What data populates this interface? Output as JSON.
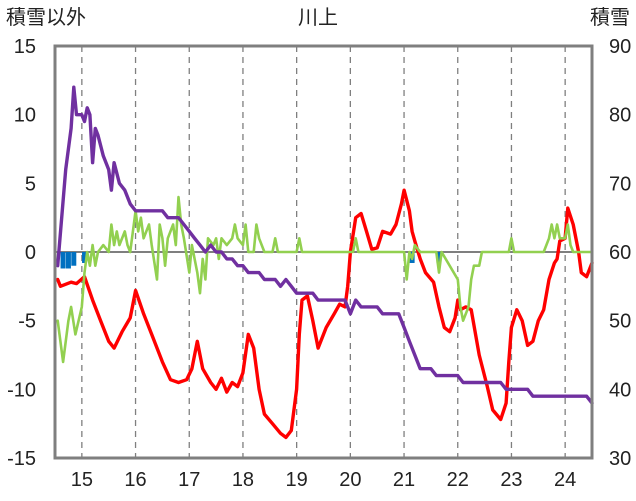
{
  "chart_data": {
    "type": "line",
    "title": "川上",
    "left_axis_title": "積雪以外",
    "right_axis_title": "積雪",
    "x_ticks": [
      "15",
      "16",
      "17",
      "18",
      "19",
      "20",
      "21",
      "22",
      "23",
      "24"
    ],
    "x_range": [
      14.5,
      24.5
    ],
    "ylim_left": [
      -15,
      15
    ],
    "yticks_left": [
      "15",
      "10",
      "5",
      "0",
      "-5",
      "-10",
      "-15"
    ],
    "ylim_right": [
      30,
      90
    ],
    "yticks_right": [
      "90",
      "80",
      "70",
      "60",
      "50",
      "40",
      "30"
    ],
    "grid": "dashed vertical at each day",
    "zero_line": 0,
    "series": [
      {
        "key": "red",
        "axis": "left",
        "color": "#ff0000",
        "points": [
          [
            14.55,
            -2.0
          ],
          [
            14.6,
            -2.5
          ],
          [
            14.8,
            -2.2
          ],
          [
            14.9,
            -2.3
          ],
          [
            15.05,
            -1.8
          ],
          [
            15.2,
            -3.5
          ],
          [
            15.35,
            -5.0
          ],
          [
            15.5,
            -6.5
          ],
          [
            15.6,
            -7.0
          ],
          [
            15.75,
            -5.8
          ],
          [
            15.9,
            -4.8
          ],
          [
            16.0,
            -2.8
          ],
          [
            16.15,
            -4.5
          ],
          [
            16.3,
            -6.0
          ],
          [
            16.5,
            -8.0
          ],
          [
            16.65,
            -9.3
          ],
          [
            16.8,
            -9.5
          ],
          [
            16.95,
            -9.3
          ],
          [
            17.05,
            -8.5
          ],
          [
            17.15,
            -6.5
          ],
          [
            17.25,
            -8.5
          ],
          [
            17.4,
            -9.5
          ],
          [
            17.5,
            -10.0
          ],
          [
            17.6,
            -9.2
          ],
          [
            17.7,
            -10.2
          ],
          [
            17.8,
            -9.5
          ],
          [
            17.9,
            -9.8
          ],
          [
            18.0,
            -8.8
          ],
          [
            18.1,
            -6.0
          ],
          [
            18.2,
            -7.0
          ],
          [
            18.3,
            -10.0
          ],
          [
            18.4,
            -11.8
          ],
          [
            18.55,
            -12.5
          ],
          [
            18.7,
            -13.2
          ],
          [
            18.8,
            -13.5
          ],
          [
            18.9,
            -13.0
          ],
          [
            19.0,
            -10.0
          ],
          [
            19.05,
            -6.0
          ],
          [
            19.1,
            -3.5
          ],
          [
            19.2,
            -3.2
          ],
          [
            19.3,
            -5.0
          ],
          [
            19.4,
            -7.0
          ],
          [
            19.55,
            -5.5
          ],
          [
            19.7,
            -4.5
          ],
          [
            19.8,
            -3.8
          ],
          [
            19.9,
            -4.0
          ],
          [
            19.95,
            -2.5
          ],
          [
            20.0,
            0.0
          ],
          [
            20.1,
            2.5
          ],
          [
            20.2,
            2.8
          ],
          [
            20.3,
            1.5
          ],
          [
            20.4,
            0.2
          ],
          [
            20.5,
            0.3
          ],
          [
            20.6,
            1.5
          ],
          [
            20.75,
            1.3
          ],
          [
            20.85,
            2.0
          ],
          [
            20.95,
            3.5
          ],
          [
            21.0,
            4.5
          ],
          [
            21.1,
            3.0
          ],
          [
            21.15,
            1.5
          ],
          [
            21.2,
            0.8
          ],
          [
            21.3,
            -0.5
          ],
          [
            21.4,
            -1.5
          ],
          [
            21.55,
            -2.2
          ],
          [
            21.65,
            -4.0
          ],
          [
            21.75,
            -5.5
          ],
          [
            21.85,
            -5.8
          ],
          [
            21.95,
            -4.8
          ],
          [
            22.0,
            -3.5
          ],
          [
            22.05,
            -4.2
          ],
          [
            22.15,
            -4.0
          ],
          [
            22.25,
            -4.2
          ],
          [
            22.4,
            -7.5
          ],
          [
            22.55,
            -9.8
          ],
          [
            22.65,
            -11.5
          ],
          [
            22.8,
            -12.2
          ],
          [
            22.9,
            -11.0
          ],
          [
            22.95,
            -8.0
          ],
          [
            23.0,
            -5.5
          ],
          [
            23.1,
            -4.2
          ],
          [
            23.2,
            -5.0
          ],
          [
            23.3,
            -6.8
          ],
          [
            23.4,
            -6.5
          ],
          [
            23.5,
            -5.0
          ],
          [
            23.6,
            -4.2
          ],
          [
            23.7,
            -2.0
          ],
          [
            23.8,
            -0.8
          ],
          [
            23.85,
            -0.5
          ],
          [
            23.9,
            0.8
          ],
          [
            24.0,
            1.0
          ],
          [
            24.05,
            3.2
          ],
          [
            24.15,
            2.0
          ],
          [
            24.25,
            0.0
          ],
          [
            24.3,
            -1.5
          ],
          [
            24.4,
            -1.8
          ],
          [
            24.5,
            -0.8
          ]
        ]
      },
      {
        "key": "green",
        "axis": "left",
        "color": "#92d050",
        "points": [
          [
            14.55,
            -5.0
          ],
          [
            14.65,
            -8.0
          ],
          [
            14.75,
            -5.0
          ],
          [
            14.8,
            -4.0
          ],
          [
            14.88,
            -6.0
          ],
          [
            15.0,
            -4.0
          ],
          [
            15.05,
            -1.5
          ],
          [
            15.1,
            0.0
          ],
          [
            15.15,
            -1.0
          ],
          [
            15.2,
            0.5
          ],
          [
            15.25,
            -1.0
          ],
          [
            15.3,
            0.0
          ],
          [
            15.4,
            0.5
          ],
          [
            15.5,
            0.0
          ],
          [
            15.55,
            2.0
          ],
          [
            15.6,
            0.5
          ],
          [
            15.65,
            1.5
          ],
          [
            15.7,
            0.5
          ],
          [
            15.8,
            1.5
          ],
          [
            15.85,
            0.5
          ],
          [
            15.9,
            0.0
          ],
          [
            16.0,
            3.0
          ],
          [
            16.05,
            1.5
          ],
          [
            16.1,
            2.5
          ],
          [
            16.15,
            1.0
          ],
          [
            16.25,
            2.0
          ],
          [
            16.3,
            0.5
          ],
          [
            16.4,
            -2.0
          ],
          [
            16.45,
            2.0
          ],
          [
            16.5,
            1.0
          ],
          [
            16.55,
            -1.0
          ],
          [
            16.6,
            1.0
          ],
          [
            16.7,
            2.0
          ],
          [
            16.75,
            0.5
          ],
          [
            16.8,
            4.0
          ],
          [
            16.85,
            2.0
          ],
          [
            16.9,
            1.0
          ],
          [
            17.0,
            -1.5
          ],
          [
            17.05,
            0.5
          ],
          [
            17.1,
            -0.5
          ],
          [
            17.15,
            -1.5
          ],
          [
            17.2,
            -3.0
          ],
          [
            17.25,
            -0.5
          ],
          [
            17.3,
            -2.0
          ],
          [
            17.35,
            1.0
          ],
          [
            17.45,
            0.5
          ],
          [
            17.5,
            1.0
          ],
          [
            17.55,
            -0.5
          ],
          [
            17.6,
            1.0
          ],
          [
            17.7,
            0.5
          ],
          [
            17.8,
            1.0
          ],
          [
            17.85,
            2.0
          ],
          [
            17.9,
            1.0
          ],
          [
            18.0,
            0.5
          ],
          [
            18.05,
            2.0
          ],
          [
            18.1,
            0.0
          ],
          [
            18.2,
            0.0
          ],
          [
            18.25,
            2.0
          ],
          [
            18.3,
            1.0
          ],
          [
            18.4,
            0.0
          ],
          [
            18.55,
            0.0
          ],
          [
            18.6,
            1.0
          ],
          [
            18.65,
            0.0
          ],
          [
            19.0,
            0.0
          ],
          [
            19.05,
            1.0
          ],
          [
            19.1,
            0.0
          ],
          [
            20.05,
            0.0
          ],
          [
            20.1,
            1.0
          ],
          [
            20.15,
            0.0
          ],
          [
            21.0,
            0.0
          ],
          [
            21.05,
            -2.0
          ],
          [
            21.1,
            0.0
          ],
          [
            21.15,
            -0.5
          ],
          [
            21.2,
            0.5
          ],
          [
            21.3,
            0.0
          ],
          [
            21.6,
            0.0
          ],
          [
            21.65,
            -1.5
          ],
          [
            21.7,
            0.0
          ],
          [
            22.0,
            -2.0
          ],
          [
            22.05,
            -4.0
          ],
          [
            22.1,
            -5.0
          ],
          [
            22.2,
            -4.0
          ],
          [
            22.25,
            -2.0
          ],
          [
            22.3,
            -1.0
          ],
          [
            22.4,
            -1.0
          ],
          [
            22.45,
            0.0
          ],
          [
            22.95,
            0.0
          ],
          [
            23.0,
            1.0
          ],
          [
            23.05,
            0.0
          ],
          [
            23.6,
            0.0
          ],
          [
            23.7,
            1.0
          ],
          [
            23.75,
            2.0
          ],
          [
            23.8,
            1.0
          ],
          [
            23.85,
            2.0
          ],
          [
            23.9,
            1.0
          ],
          [
            24.0,
            1.0
          ],
          [
            24.05,
            2.0
          ],
          [
            24.1,
            0.5
          ],
          [
            24.15,
            0.0
          ],
          [
            24.5,
            0.0
          ]
        ]
      },
      {
        "key": "purple",
        "axis": "right",
        "color": "#7030a0",
        "points": [
          [
            14.55,
            58
          ],
          [
            14.7,
            72
          ],
          [
            14.8,
            78
          ],
          [
            14.85,
            84
          ],
          [
            14.9,
            80
          ],
          [
            15.0,
            80
          ],
          [
            15.05,
            79
          ],
          [
            15.1,
            81
          ],
          [
            15.15,
            80
          ],
          [
            15.2,
            73
          ],
          [
            15.25,
            78
          ],
          [
            15.3,
            77
          ],
          [
            15.4,
            74
          ],
          [
            15.5,
            72
          ],
          [
            15.55,
            69
          ],
          [
            15.6,
            73
          ],
          [
            15.7,
            70
          ],
          [
            15.8,
            69
          ],
          [
            15.9,
            67
          ],
          [
            16.0,
            66
          ],
          [
            16.5,
            66
          ],
          [
            16.6,
            65
          ],
          [
            16.8,
            65
          ],
          [
            16.9,
            64
          ],
          [
            17.0,
            63
          ],
          [
            17.1,
            62
          ],
          [
            17.2,
            61
          ],
          [
            17.3,
            60
          ],
          [
            17.4,
            61
          ],
          [
            17.5,
            60
          ],
          [
            17.6,
            60
          ],
          [
            17.7,
            59
          ],
          [
            17.8,
            59
          ],
          [
            17.9,
            58
          ],
          [
            18.0,
            58
          ],
          [
            18.1,
            57
          ],
          [
            18.3,
            57
          ],
          [
            18.4,
            56
          ],
          [
            18.6,
            56
          ],
          [
            18.7,
            55
          ],
          [
            18.8,
            56
          ],
          [
            18.9,
            55
          ],
          [
            19.0,
            54
          ],
          [
            19.3,
            54
          ],
          [
            19.4,
            53
          ],
          [
            19.9,
            53
          ],
          [
            20.0,
            51
          ],
          [
            20.1,
            53
          ],
          [
            20.2,
            52
          ],
          [
            20.5,
            52
          ],
          [
            20.6,
            51
          ],
          [
            20.9,
            51
          ],
          [
            21.0,
            49
          ],
          [
            21.1,
            47
          ],
          [
            21.2,
            45
          ],
          [
            21.3,
            43
          ],
          [
            21.5,
            43
          ],
          [
            21.6,
            42
          ],
          [
            22.0,
            42
          ],
          [
            22.1,
            41
          ],
          [
            22.8,
            41
          ],
          [
            22.9,
            40
          ],
          [
            23.3,
            40
          ],
          [
            23.4,
            39
          ],
          [
            24.4,
            39
          ],
          [
            24.5,
            38
          ]
        ]
      },
      {
        "key": "blue",
        "axis": "left",
        "color": "#0070c0",
        "type": "bar",
        "x": [
          14.65,
          14.75,
          14.85,
          15.05,
          21.15,
          21.65
        ],
        "values": [
          -1.2,
          -1.2,
          -1.0,
          -0.8,
          -0.8,
          -0.8
        ]
      }
    ]
  }
}
